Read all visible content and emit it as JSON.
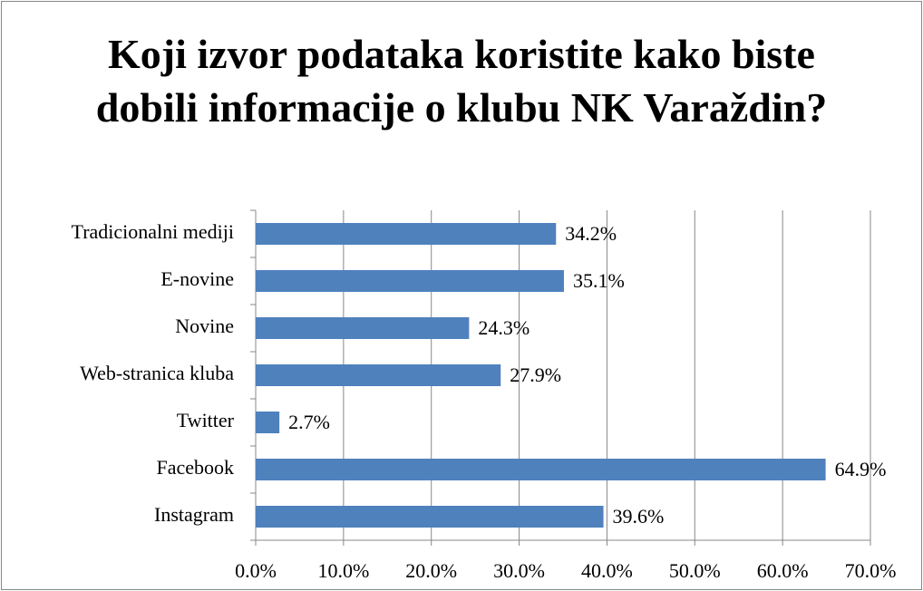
{
  "chart_data": {
    "type": "hbar",
    "title": "Koji izvor podataka koristite kako biste dobili informacije o klubu NK Varaždin?",
    "categories": [
      "Tradicionalni mediji",
      "E-novine",
      "Novine",
      "Web-stranica kluba",
      "Twitter",
      "Facebook",
      "Instagram"
    ],
    "values": [
      34.2,
      35.1,
      24.3,
      27.9,
      2.7,
      64.9,
      39.6
    ],
    "value_labels": [
      "34.2%",
      "35.1%",
      "24.3%",
      "27.9%",
      "2.7%",
      "64.9%",
      "39.6%"
    ],
    "color": "#4f81bd",
    "xlim": [
      0,
      70
    ],
    "xticks": [
      {
        "value": 0,
        "label": "0.0%"
      },
      {
        "value": 10,
        "label": "10.0%"
      },
      {
        "value": 20,
        "label": "20.0%"
      },
      {
        "value": 30,
        "label": "30.0%"
      },
      {
        "value": 40,
        "label": "40.0%"
      },
      {
        "value": 50,
        "label": "50.0%"
      },
      {
        "value": 60,
        "label": "60.0%"
      },
      {
        "value": 70,
        "label": "70.0%"
      }
    ],
    "grid": true
  }
}
